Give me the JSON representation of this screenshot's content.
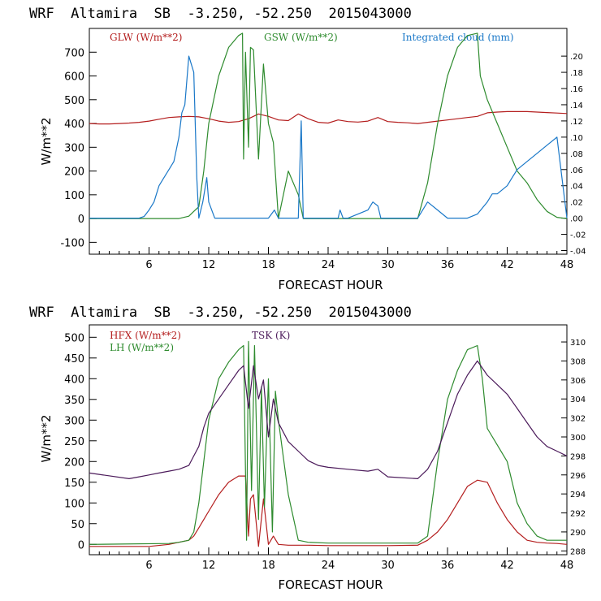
{
  "chart_data": [
    {
      "type": "line",
      "title": "WRF  Altamira  SB  -3.250, -52.250  2015043000",
      "xlabel": "FORECAST HOUR",
      "ylabel": "W/m**2",
      "xlim": [
        0,
        48
      ],
      "ylim": [
        -150,
        800
      ],
      "xticks": [
        6,
        12,
        18,
        24,
        30,
        36,
        42,
        48
      ],
      "yticks": [
        -100,
        0,
        100,
        200,
        300,
        400,
        500,
        600,
        700
      ],
      "y2lim": [
        -0.0445,
        0.2342
      ],
      "y2ticks": [
        -0.04,
        -0.02,
        0.0,
        0.02,
        0.04,
        0.06,
        0.08,
        0.1,
        0.12,
        0.14,
        0.16,
        0.18,
        0.2
      ],
      "y2ticklabels": [
        "-.04",
        "-.02",
        ".00",
        ".02",
        ".04",
        ".06",
        ".08",
        ".10",
        ".12",
        ".14",
        ".16",
        ".18",
        ".20"
      ],
      "series": [
        {
          "name": "GLW (W/m**2)",
          "color": "#b41e1e",
          "axis": "left",
          "x": [
            0,
            1,
            2,
            3,
            4,
            5,
            6,
            7,
            8,
            9,
            10,
            11,
            12,
            13,
            14,
            15,
            16,
            17,
            18,
            19,
            20,
            21,
            22,
            23,
            24,
            25,
            26,
            27,
            28,
            29,
            30,
            31,
            32,
            33,
            34,
            35,
            36,
            37,
            38,
            39,
            40,
            41,
            42,
            43,
            44,
            45,
            46,
            47,
            48
          ],
          "y": [
            400,
            398,
            398,
            400,
            402,
            405,
            410,
            418,
            425,
            428,
            430,
            428,
            420,
            410,
            405,
            408,
            420,
            440,
            430,
            415,
            412,
            440,
            420,
            405,
            402,
            415,
            408,
            406,
            410,
            425,
            408,
            405,
            403,
            400,
            405,
            410,
            415,
            420,
            425,
            430,
            445,
            448,
            450,
            450,
            450,
            448,
            446,
            444,
            442
          ]
        },
        {
          "name": "GSW (W/m**2)",
          "color": "#2e8b2e",
          "axis": "left",
          "x": [
            0,
            9,
            10,
            10.5,
            11,
            11.5,
            12,
            13,
            14,
            15,
            15.4,
            15.5,
            15.7,
            16,
            16.2,
            16.5,
            17,
            17.5,
            18,
            18.5,
            19,
            20,
            21,
            21.5,
            22,
            33,
            34,
            35,
            36,
            37,
            38,
            39,
            39.3,
            40,
            41,
            42,
            43,
            44,
            45,
            46,
            47,
            48
          ],
          "y": [
            0,
            0,
            10,
            30,
            50,
            200,
            400,
            600,
            720,
            770,
            780,
            250,
            700,
            300,
            720,
            710,
            250,
            650,
            400,
            320,
            0,
            200,
            100,
            0,
            0,
            0,
            150,
            400,
            600,
            720,
            770,
            780,
            600,
            500,
            400,
            300,
            200,
            150,
            80,
            30,
            5,
            0
          ]
        },
        {
          "name": "Integrated cloud (mm)",
          "color": "#1a78c8",
          "axis": "right",
          "x": [
            0,
            5,
            5.5,
            6,
            6.5,
            7,
            7.5,
            8,
            8.5,
            9,
            9.3,
            9.6,
            10,
            10.5,
            10.8,
            11,
            11.4,
            11.8,
            12,
            12.6,
            13,
            15,
            17,
            18,
            18.6,
            19,
            20,
            21,
            21.3,
            21.5,
            22,
            25,
            25.2,
            25.5,
            26,
            28,
            28.5,
            29,
            29.3,
            30,
            33,
            34,
            35,
            36,
            37,
            38,
            39,
            40,
            40.5,
            41,
            42,
            42.5,
            43,
            44,
            45,
            46,
            47,
            48
          ],
          "y": [
            0,
            0,
            0.002,
            0.01,
            0.02,
            0.04,
            0.05,
            0.06,
            0.07,
            0.1,
            0.13,
            0.14,
            0.2,
            0.18,
            0.05,
            0.0,
            0.02,
            0.05,
            0.02,
            0.0,
            0.0,
            0.0,
            0.0,
            0.0,
            0.01,
            0.0,
            0.0,
            0.0,
            0.12,
            0.0,
            0.0,
            0.0,
            0.01,
            0.0,
            0.0,
            0.01,
            0.02,
            0.015,
            0.0,
            0.0,
            0.0,
            0.02,
            0.01,
            0.0,
            0.0,
            0.0,
            0.005,
            0.02,
            0.03,
            0.03,
            0.04,
            0.05,
            0.06,
            0.07,
            0.08,
            0.09,
            0.1,
            0.0
          ]
        }
      ]
    },
    {
      "type": "line",
      "title": "WRF  Altamira  SB  -3.250, -52.250  2015043000",
      "xlabel": "FORECAST HOUR",
      "ylabel": "W/m**2",
      "xlim": [
        0,
        48
      ],
      "ylim": [
        -25,
        530
      ],
      "xticks": [
        6,
        12,
        18,
        24,
        30,
        36,
        42,
        48
      ],
      "yticks": [
        0,
        50,
        100,
        150,
        200,
        250,
        300,
        350,
        400,
        450,
        500
      ],
      "y2lim": [
        287.6,
        311.8
      ],
      "y2ticks": [
        288,
        290,
        292,
        294,
        296,
        298,
        300,
        302,
        304,
        306,
        308,
        310
      ],
      "y2ticklabels": [
        "288",
        "290",
        "292",
        "294",
        "296",
        "298",
        "300",
        "302",
        "304",
        "306",
        "308",
        "310"
      ],
      "series": [
        {
          "name": "HFX (W/m**2)",
          "color": "#b41e1e",
          "axis": "left",
          "x": [
            0,
            6,
            8,
            9,
            10,
            10.5,
            11,
            12,
            13,
            14,
            15,
            15.7,
            16,
            16.2,
            16.5,
            17,
            17.5,
            18,
            18.5,
            19,
            20,
            22,
            24,
            30,
            33,
            34,
            35,
            36,
            37,
            38,
            39,
            40,
            41,
            42,
            43,
            44,
            45,
            46,
            47,
            48
          ],
          "y": [
            -5,
            -5,
            0,
            5,
            10,
            20,
            40,
            80,
            120,
            150,
            165,
            165,
            20,
            110,
            120,
            -5,
            110,
            0,
            20,
            0,
            -2,
            -2,
            -3,
            -3,
            -2,
            10,
            30,
            60,
            100,
            140,
            155,
            150,
            100,
            60,
            30,
            10,
            5,
            3,
            2,
            0
          ]
        },
        {
          "name": "LH (W/m**2)",
          "color": "#2e8b2e",
          "axis": "left",
          "x": [
            0,
            8,
            9,
            10,
            10.5,
            11,
            11.5,
            12,
            13,
            14,
            15,
            15.5,
            15.8,
            16,
            16.3,
            16.6,
            17,
            17.3,
            17.6,
            18,
            18.4,
            18.7,
            19,
            20,
            21,
            22,
            24,
            33,
            34,
            35,
            36,
            37,
            38,
            39,
            39.5,
            40,
            41,
            42,
            43,
            44,
            45,
            46,
            47,
            48
          ],
          "y": [
            0,
            2,
            5,
            10,
            30,
            100,
            200,
            300,
            400,
            440,
            470,
            480,
            10,
            490,
            130,
            480,
            60,
            380,
            90,
            400,
            30,
            370,
            300,
            120,
            10,
            5,
            3,
            3,
            20,
            200,
            350,
            420,
            470,
            480,
            400,
            280,
            240,
            200,
            100,
            50,
            20,
            10,
            10,
            10
          ]
        },
        {
          "name": "TSK (K)",
          "color": "#4b1a5a",
          "axis": "right",
          "x": [
            0,
            4,
            5,
            6,
            7,
            8,
            9,
            10,
            10.5,
            11,
            11.5,
            12,
            13,
            14,
            15,
            15.5,
            16,
            16.5,
            17,
            17.5,
            18,
            18.5,
            19,
            20,
            21,
            22,
            23,
            24,
            26,
            28,
            29,
            30,
            33,
            34,
            35,
            36,
            37,
            38,
            39,
            40,
            41,
            42,
            43,
            44,
            45,
            46,
            47,
            48
          ],
          "y": [
            296.2,
            295.6,
            295.8,
            296.0,
            296.2,
            296.4,
            296.6,
            297.0,
            298.0,
            299.0,
            301.0,
            302.5,
            304.0,
            305.5,
            307.0,
            307.5,
            303.0,
            307.5,
            304.0,
            306.0,
            300.0,
            304.0,
            301.5,
            299.5,
            298.5,
            297.5,
            297.0,
            296.8,
            296.6,
            296.4,
            296.6,
            295.8,
            295.6,
            296.6,
            298.5,
            301.5,
            304.5,
            306.5,
            308.0,
            306.5,
            305.5,
            304.5,
            303.0,
            301.5,
            300.0,
            299.0,
            298.5,
            298.0
          ]
        }
      ]
    }
  ]
}
